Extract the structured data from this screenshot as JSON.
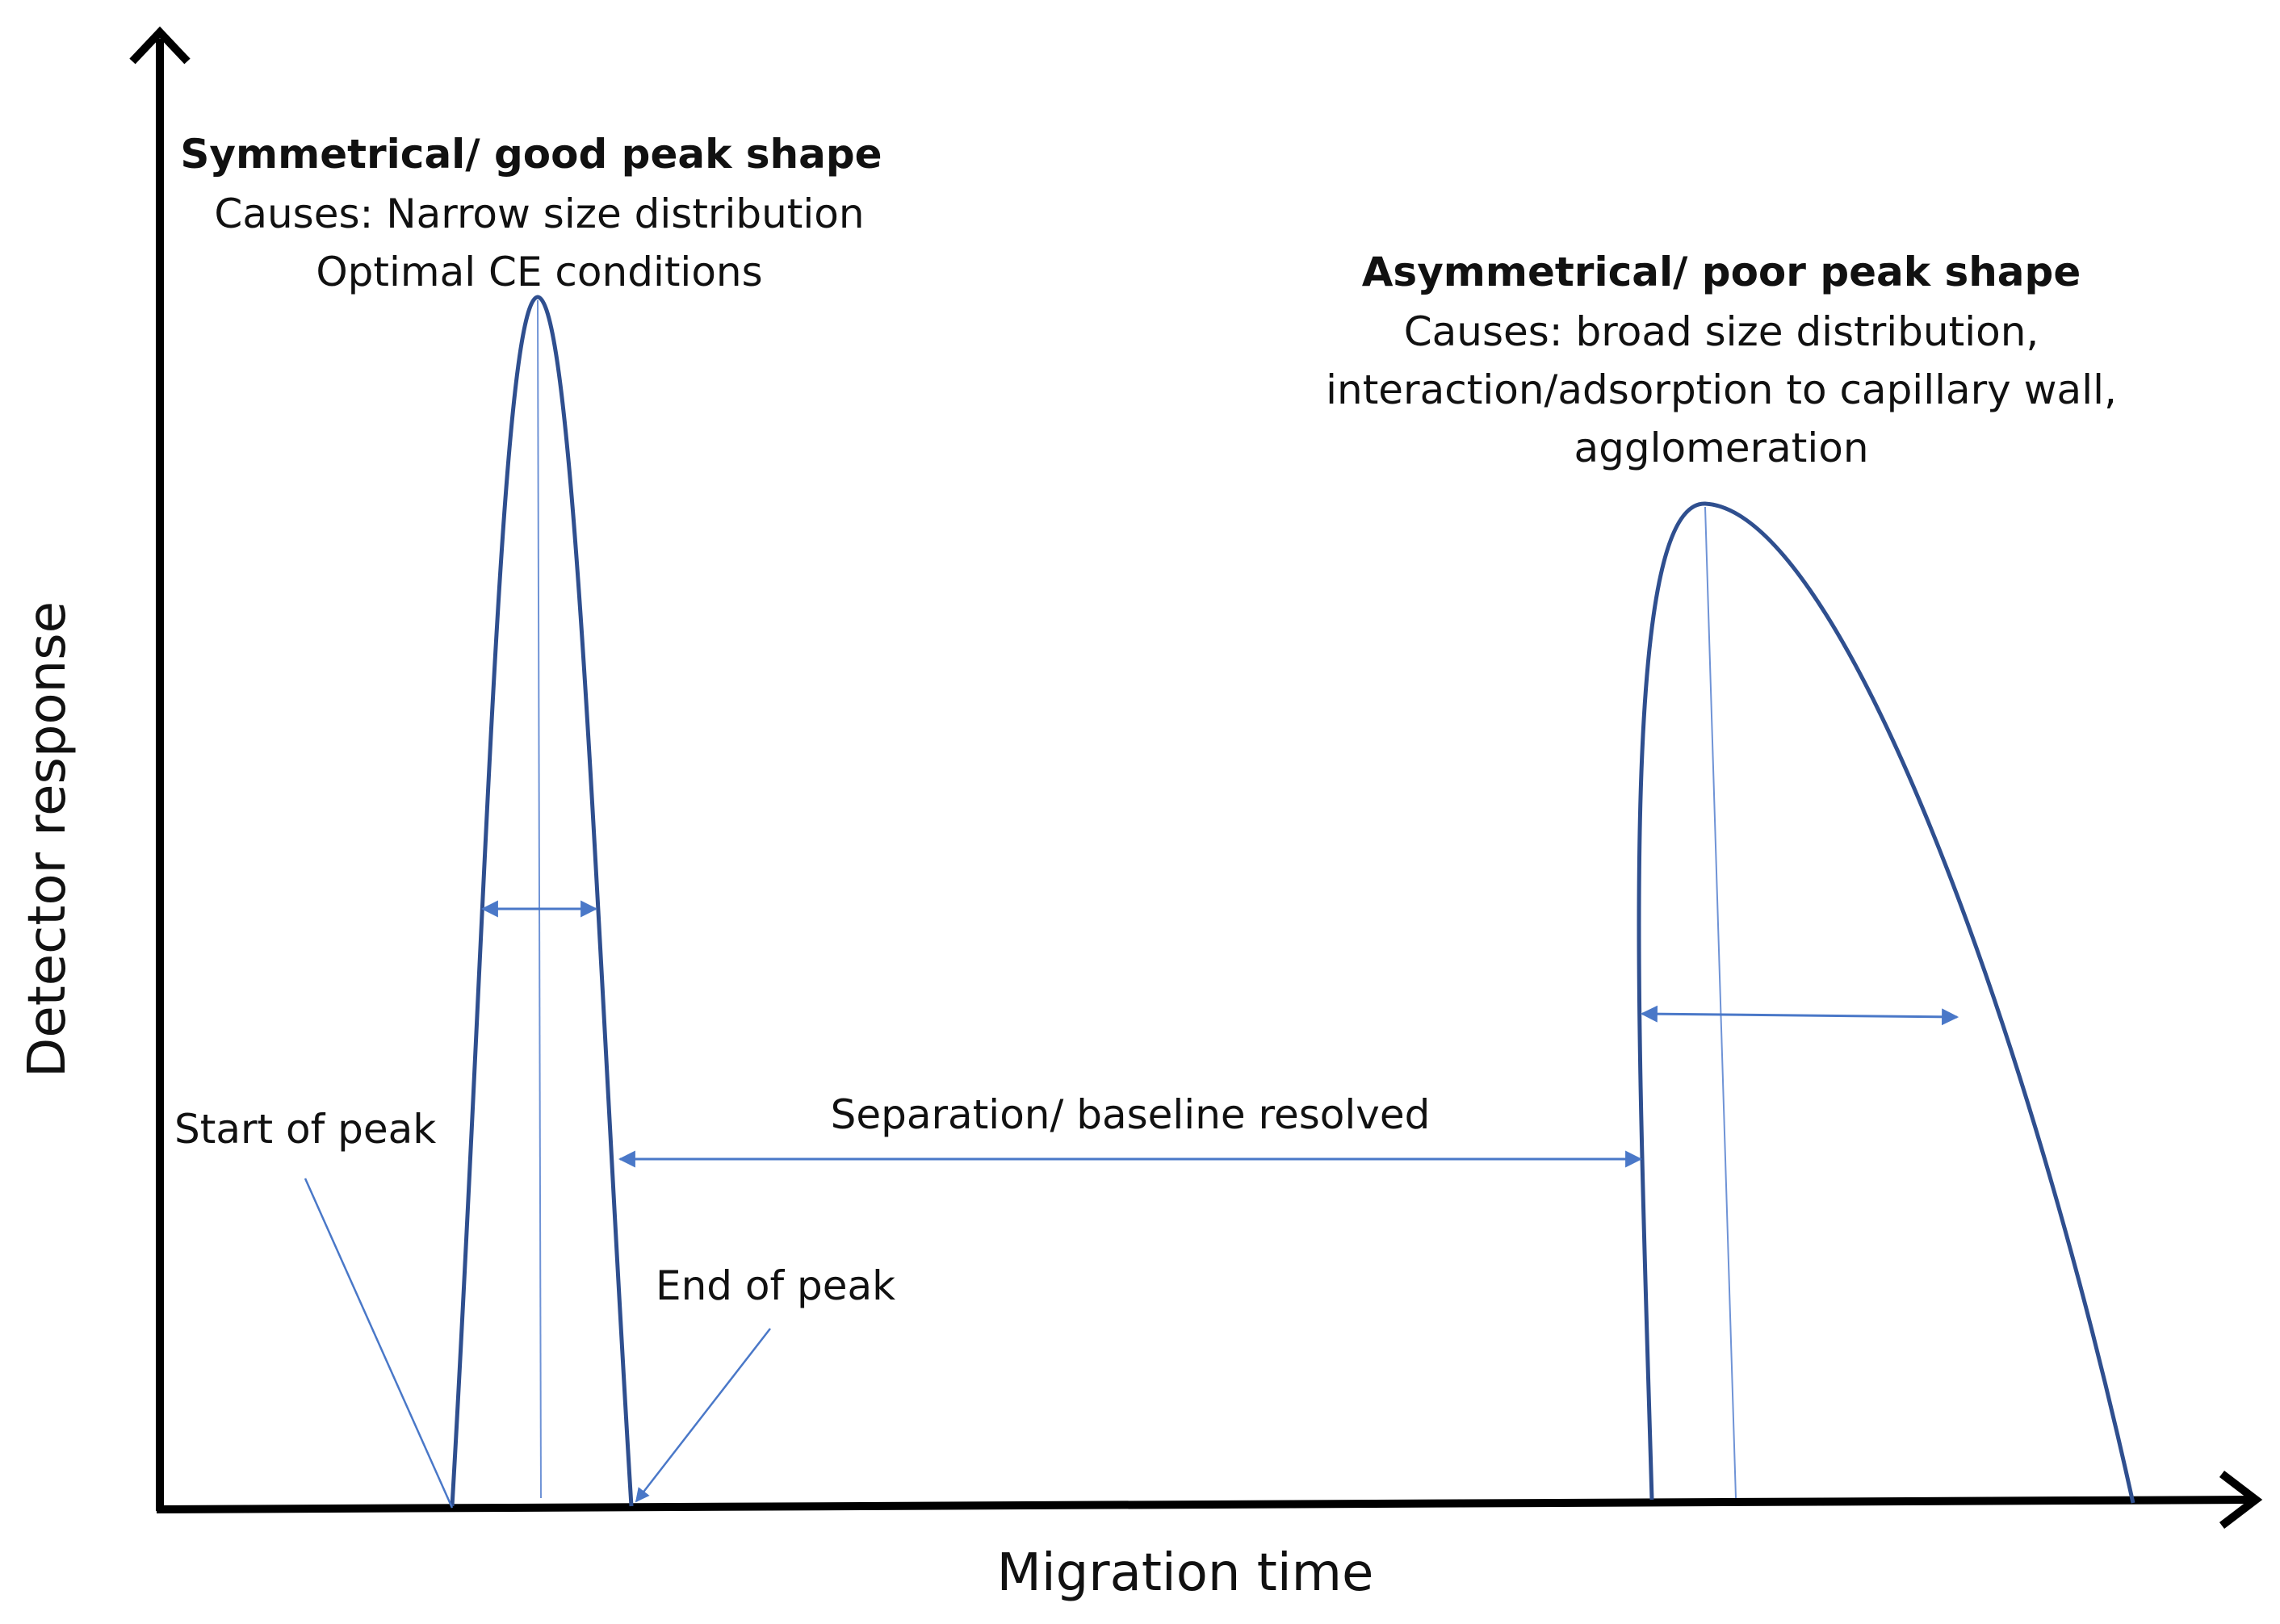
{
  "axes": {
    "x_label": "Migration time",
    "y_label": "Detector response"
  },
  "peaks": {
    "symmetrical": {
      "title": "Symmetrical/ good peak shape",
      "causes_line1": "Causes: Narrow size distribution",
      "causes_line2": "Optimal CE conditions"
    },
    "asymmetrical": {
      "title": "Asymmetrical/ poor peak shape",
      "causes_line1": "Causes: broad size distribution,",
      "causes_line2": "interaction/adsorption to capillary wall,",
      "causes_line3": "agglomeration"
    }
  },
  "annotations": {
    "start_of_peak": "Start of peak",
    "end_of_peak": "End of peak",
    "separation": "Separation/ baseline resolved"
  },
  "colors": {
    "axis": "#000000",
    "peak_outline": "#2f4f8f",
    "guide_line": "#4a78c8",
    "arrow": "#4a78c8",
    "text": "#111111"
  }
}
